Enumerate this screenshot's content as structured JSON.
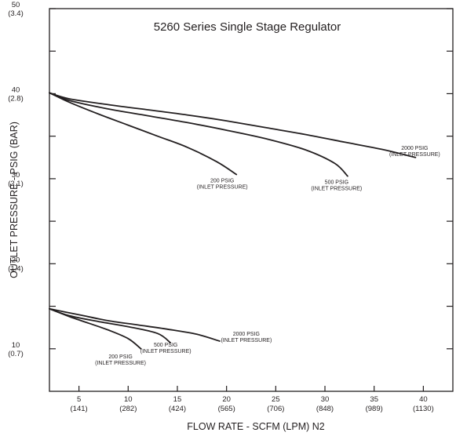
{
  "chart_data": {
    "type": "line",
    "title": "5260 Series Single Stage Regulator",
    "xlabel": "FLOW RATE - SCFM (LPM) N2",
    "ylabel": "OUTLET PRESSURE - PSIG (BAR)",
    "xlim": [
      2,
      43
    ],
    "ylim": [
      5,
      50
    ],
    "grid": false,
    "x_ticks": [
      {
        "value": 5,
        "line1": "5",
        "line2": "(141)"
      },
      {
        "value": 10,
        "line1": "10",
        "line2": "(282)"
      },
      {
        "value": 15,
        "line1": "15",
        "line2": "(424)"
      },
      {
        "value": 20,
        "line1": "20",
        "line2": "(565)"
      },
      {
        "value": 25,
        "line1": "25",
        "line2": "(706)"
      },
      {
        "value": 30,
        "line1": "30",
        "line2": "(848)"
      },
      {
        "value": 35,
        "line1": "35",
        "line2": "(989)"
      },
      {
        "value": 40,
        "line1": "40",
        "line2": "(1130)"
      }
    ],
    "y_ticks": [
      {
        "value": 10,
        "line1": "10",
        "line2": "(0.7)"
      },
      {
        "value": 20,
        "line1": "20",
        "line2": "(1.4)"
      },
      {
        "value": 30,
        "line1": "30",
        "line2": "(2.1)"
      },
      {
        "value": 40,
        "line1": "40",
        "line2": "(2.8)"
      },
      {
        "value": 50,
        "line1": "50",
        "line2": "(3.4)"
      }
    ],
    "series": [
      {
        "name": "200 PSIG (INLET PRESSURE)",
        "label_line1": "200 PSIG",
        "label_line2": "(INLET PRESSURE)",
        "x": [
          2,
          4,
          7,
          10,
          13,
          16,
          19,
          21
        ],
        "y": [
          40.1,
          39.0,
          37.6,
          36.3,
          35.0,
          33.7,
          32.0,
          30.5
        ]
      },
      {
        "name": "500 PSIG (INLET PRESSURE)",
        "label_line1": "500 PSIG",
        "label_line2": "(INLET PRESSURE)",
        "x": [
          2,
          4,
          8,
          12,
          16,
          20,
          24,
          28,
          31,
          32.3
        ],
        "y": [
          40.1,
          39.2,
          38.2,
          37.4,
          36.6,
          35.7,
          34.7,
          33.4,
          31.8,
          30.3
        ]
      },
      {
        "name": "2000 PSIG (INLET PRESSURE)",
        "label_line1": "2000 PSIG",
        "label_line2": "(INLET PRESSURE)",
        "x": [
          2,
          4,
          8,
          12,
          16,
          20,
          24,
          28,
          32,
          36,
          39.2
        ],
        "y": [
          40.1,
          39.4,
          38.7,
          38.1,
          37.5,
          36.8,
          36.0,
          35.2,
          34.3,
          33.4,
          32.5
        ]
      },
      {
        "name": "200 PSIG (INLET PRESSURE)",
        "label_line1": "200 PSIG",
        "label_line2": "(INLET PRESSURE)",
        "x": [
          2,
          4,
          6,
          8,
          10,
          11.3
        ],
        "y": [
          14.7,
          13.8,
          13.0,
          12.2,
          11.2,
          10.0
        ]
      },
      {
        "name": "500 PSIG (INLET PRESSURE)",
        "label_line1": "500 PSIG",
        "label_line2": "(INLET PRESSURE)",
        "x": [
          2,
          4,
          7,
          10,
          13,
          14.3
        ],
        "y": [
          14.7,
          13.9,
          13.2,
          12.6,
          11.8,
          10.7
        ]
      },
      {
        "name": "2000 PSIG (INLET PRESSURE)",
        "label_line1": "2000 PSIG",
        "label_line2": "(INLET PRESSURE)",
        "x": [
          2,
          5,
          8,
          11,
          14,
          17,
          19.3
        ],
        "y": [
          14.7,
          14.0,
          13.3,
          12.8,
          12.3,
          11.7,
          10.9
        ]
      }
    ]
  }
}
